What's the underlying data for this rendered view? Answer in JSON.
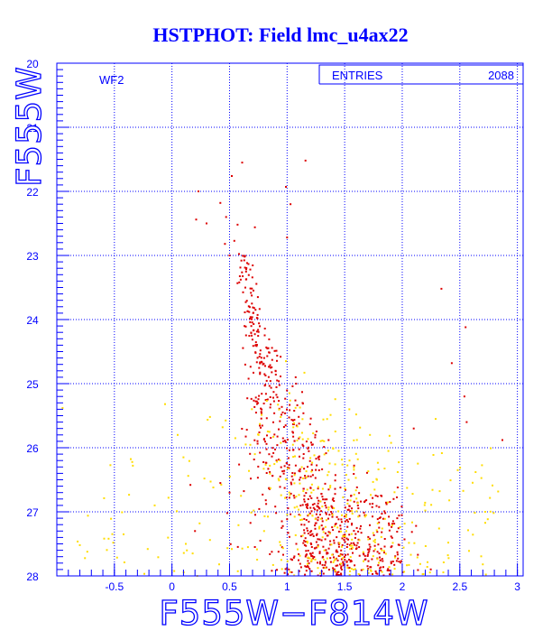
{
  "chart_data": {
    "type": "scatter",
    "title": "HSTPHOT: Field lmc_u4ax22",
    "xlabel": "F555W−F814W",
    "ylabel": "F555W",
    "xlim": [
      -1.0,
      3.05
    ],
    "ylim": [
      28,
      20
    ],
    "y_inverted": true,
    "grid": true,
    "x_ticks": [
      -0.5,
      0,
      0.5,
      1,
      1.5,
      2,
      2.5,
      3
    ],
    "x_tick_labels": [
      "-0.5",
      "0",
      "0.5",
      "1",
      "1.5",
      "2",
      "2.5",
      "3"
    ],
    "y_ticks": [
      20,
      21,
      22,
      23,
      24,
      25,
      26,
      27,
      28
    ],
    "y_tick_labels": [
      "20",
      "21",
      "22",
      "23",
      "24",
      "25",
      "26",
      "27",
      "28"
    ],
    "annotation": "WF2",
    "stats_box": {
      "label": "ENTRIES",
      "value": "2088"
    },
    "colors": {
      "axis": "#0000ff",
      "grid": "#0000ff",
      "primary": "#dd0000",
      "secondary": "#ffdd00"
    },
    "series": [
      {
        "color": "#dd0000",
        "points": [
          [
            0.61,
            21.55
          ],
          [
            1.16,
            21.52
          ],
          [
            0.52,
            21.76
          ],
          [
            0.99,
            21.93
          ],
          [
            0.23,
            22.0
          ],
          [
            0.42,
            22.18
          ],
          [
            0.47,
            22.4
          ],
          [
            0.3,
            22.5
          ],
          [
            0.57,
            22.52
          ],
          [
            0.72,
            22.56
          ],
          [
            1.03,
            22.2
          ],
          [
            0.21,
            22.44
          ],
          [
            1.0,
            22.72
          ],
          [
            0.46,
            22.82
          ],
          [
            0.5,
            23.0
          ],
          [
            2.34,
            23.52
          ],
          [
            2.55,
            24.12
          ],
          [
            2.43,
            24.68
          ],
          [
            2.54,
            25.2
          ],
          [
            2.56,
            25.6
          ],
          [
            2.87,
            25.88
          ],
          [
            2.1,
            25.7
          ],
          [
            1.36,
            25.88
          ],
          [
            0.16,
            26.58
          ],
          [
            0.42,
            26.55
          ],
          [
            0.5,
            26.7
          ],
          [
            0.48,
            27.02
          ],
          [
            1.96,
            26.62
          ],
          [
            2.02,
            27.43
          ],
          [
            2.12,
            27.22
          ],
          [
            0.2,
            27.3
          ],
          [
            1.08,
            27.5
          ],
          [
            0.85,
            27.66
          ],
          [
            1.1,
            27.66
          ]
        ]
      },
      {
        "color": "#ffdd00",
        "points": [
          [
            -0.8,
            27.52
          ],
          [
            -0.73,
            27.06
          ],
          [
            -0.55,
            27.42
          ],
          [
            -0.42,
            27.35
          ],
          [
            -0.21,
            27.58
          ],
          [
            -0.15,
            26.9
          ],
          [
            -0.03,
            26.78
          ],
          [
            0.12,
            27.5
          ],
          [
            0.18,
            27.65
          ],
          [
            0.24,
            27.18
          ],
          [
            0.33,
            27.44
          ],
          [
            0.41,
            27.82
          ],
          [
            0.52,
            27.58
          ],
          [
            0.1,
            26.15
          ],
          [
            -0.34,
            26.28
          ],
          [
            -0.06,
            25.32
          ],
          [
            0.33,
            25.52
          ],
          [
            0.44,
            25.68
          ],
          [
            0.55,
            25.85
          ],
          [
            0.64,
            25.95
          ],
          [
            0.72,
            26.1
          ],
          [
            0.85,
            26.28
          ],
          [
            0.93,
            26.51
          ],
          [
            0.6,
            26.75
          ],
          [
            0.71,
            26.98
          ],
          [
            0.8,
            27.3
          ],
          [
            0.66,
            27.55
          ],
          [
            0.95,
            27.75
          ],
          [
            1.6,
            25.48
          ],
          [
            1.72,
            25.8
          ],
          [
            1.88,
            26.05
          ],
          [
            1.96,
            26.38
          ],
          [
            2.09,
            26.72
          ],
          [
            2.2,
            26.98
          ],
          [
            2.32,
            27.26
          ],
          [
            2.4,
            27.48
          ],
          [
            2.58,
            27.61
          ],
          [
            2.72,
            27.0
          ],
          [
            1.78,
            26.5
          ],
          [
            1.85,
            27.11
          ],
          [
            1.66,
            27.9
          ],
          [
            1.42,
            27.92
          ],
          [
            0.22,
            28.0
          ],
          [
            2.7,
            27.82
          ],
          [
            -0.95,
            25.38
          ],
          [
            0.05,
            25.8
          ],
          [
            2.29,
            25.55
          ],
          [
            0.99,
            24.65
          ],
          [
            1.15,
            24.83
          ],
          [
            1.02,
            25.15
          ]
        ]
      }
    ]
  }
}
